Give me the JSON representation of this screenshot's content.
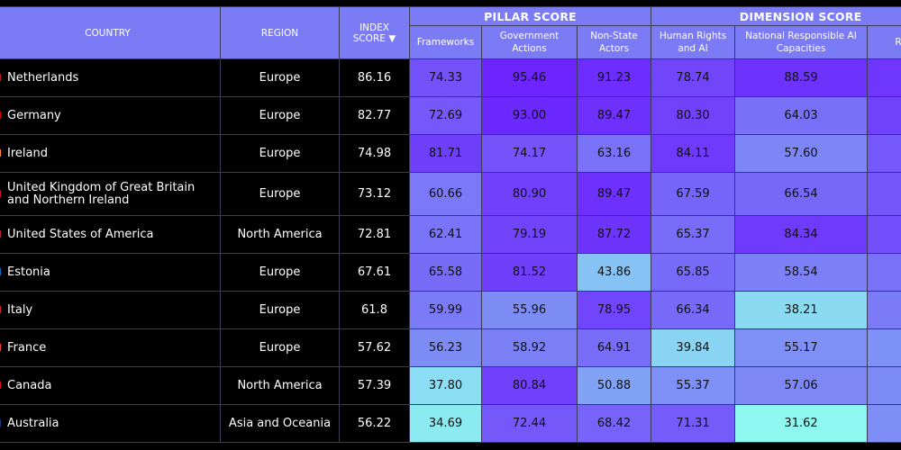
{
  "chart_data": {
    "type": "table",
    "groups": {
      "pillar": "PILLAR SCORE",
      "dimension": "DIMENSION SCORE"
    },
    "columns": {
      "country": "COUNTRY",
      "region": "REGION",
      "index_score_line1": "INDEX",
      "index_score_line2": "SCORE",
      "frameworks": "Frameworks",
      "government_actions": "Government Actions",
      "non_state_actors": "Non-State Actors",
      "human_rights_ai": "Human Rights and AI",
      "national_capacities": "National Responsible AI Capacities",
      "responsible_governance": "Res G"
    },
    "sort": {
      "column": "index_score",
      "direction": "descending"
    },
    "rows": [
      {
        "country": "Netherlands",
        "region": "Europe",
        "index_score": "86.16",
        "frameworks": "74.33",
        "government_actions": "95.46",
        "non_state_actors": "91.23",
        "human_rights_ai": "78.74",
        "national_capacities": "88.59",
        "flag_color": "#ae1c28"
      },
      {
        "country": "Germany",
        "region": "Europe",
        "index_score": "82.77",
        "frameworks": "72.69",
        "government_actions": "93.00",
        "non_state_actors": "89.47",
        "human_rights_ai": "80.30",
        "national_capacities": "64.03",
        "flag_color": "#dd0000"
      },
      {
        "country": "Ireland",
        "region": "Europe",
        "index_score": "74.98",
        "frameworks": "81.71",
        "government_actions": "74.17",
        "non_state_actors": "63.16",
        "human_rights_ai": "84.11",
        "national_capacities": "57.60",
        "flag_color": "#ff883e"
      },
      {
        "country": "United Kingdom of Great Britain and Northern Ireland",
        "region": "Europe",
        "index_score": "73.12",
        "frameworks": "60.66",
        "government_actions": "80.90",
        "non_state_actors": "89.47",
        "human_rights_ai": "67.59",
        "national_capacities": "66.54",
        "flag_color": "#c8102e"
      },
      {
        "country": "United States of America",
        "region": "North America",
        "index_score": "72.81",
        "frameworks": "62.41",
        "government_actions": "79.19",
        "non_state_actors": "87.72",
        "human_rights_ai": "65.37",
        "national_capacities": "84.34",
        "flag_color": "#b22234"
      },
      {
        "country": "Estonia",
        "region": "Europe",
        "index_score": "67.61",
        "frameworks": "65.58",
        "government_actions": "81.52",
        "non_state_actors": "43.86",
        "human_rights_ai": "65.85",
        "national_capacities": "58.54",
        "flag_color": "#0072ce"
      },
      {
        "country": "Italy",
        "region": "Europe",
        "index_score": "61.8",
        "frameworks": "59.99",
        "government_actions": "55.96",
        "non_state_actors": "78.95",
        "human_rights_ai": "66.34",
        "national_capacities": "38.21",
        "flag_color": "#ce2b37"
      },
      {
        "country": "France",
        "region": "Europe",
        "index_score": "57.62",
        "frameworks": "56.23",
        "government_actions": "58.92",
        "non_state_actors": "64.91",
        "human_rights_ai": "39.84",
        "national_capacities": "55.17",
        "flag_color": "#ef4135"
      },
      {
        "country": "Canada",
        "region": "North America",
        "index_score": "57.39",
        "frameworks": "37.80",
        "government_actions": "80.84",
        "non_state_actors": "50.88",
        "human_rights_ai": "55.37",
        "national_capacities": "57.06",
        "flag_color": "#d80621"
      },
      {
        "country": "Australia",
        "region": "Asia and Oceania",
        "index_score": "56.22",
        "frameworks": "34.69",
        "government_actions": "72.44",
        "non_state_actors": "68.42",
        "human_rights_ai": "71.31",
        "national_capacities": "31.62",
        "flag_color": "#1a3a8a"
      }
    ],
    "color_scale": {
      "low": "#8ffff0",
      "mid": "#7b7bf7",
      "high": "#6a1cff"
    }
  }
}
